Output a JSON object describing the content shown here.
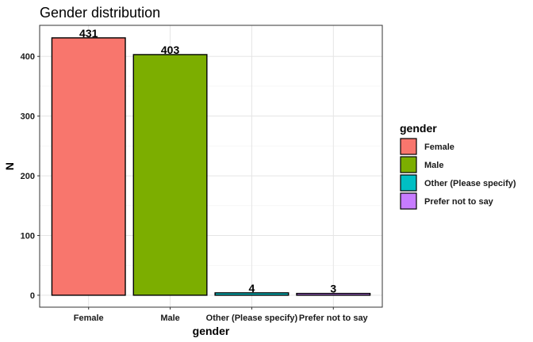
{
  "chart_data": {
    "type": "bar",
    "title": "Gender distribution",
    "xlabel": "gender",
    "ylabel": "N",
    "categories": [
      "Female",
      "Male",
      "Other (Please specify)",
      "Prefer not to say"
    ],
    "values": [
      431,
      403,
      4,
      3
    ],
    "colors": [
      "#F8766D",
      "#7CAE00",
      "#00BFC4",
      "#C77CFF"
    ],
    "ylim": [
      -20,
      452
    ],
    "yticks": [
      0,
      100,
      200,
      300,
      400
    ],
    "grid": true,
    "data_labels": true,
    "legend": {
      "title": "gender",
      "placement": "right",
      "entries": [
        "Female",
        "Male",
        "Other (Please specify)",
        "Prefer not to say"
      ]
    }
  }
}
